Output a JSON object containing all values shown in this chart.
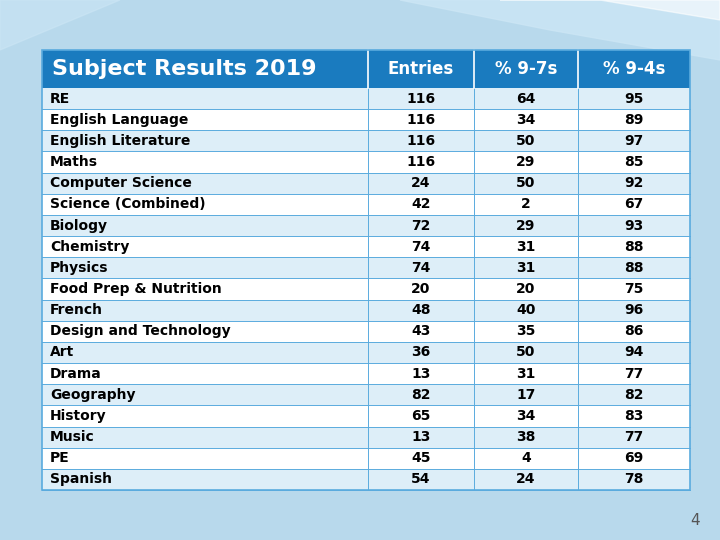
{
  "title": "Subject Results 2019",
  "col_headers": [
    "Entries",
    "% 9-7s",
    "% 9-4s"
  ],
  "rows": [
    [
      "RE",
      116,
      64,
      95
    ],
    [
      "English Language",
      116,
      34,
      89
    ],
    [
      "English Literature",
      116,
      50,
      97
    ],
    [
      "Maths",
      116,
      29,
      85
    ],
    [
      "Computer Science",
      24,
      50,
      92
    ],
    [
      "Science (Combined)",
      42,
      2,
      67
    ],
    [
      "Biology",
      72,
      29,
      93
    ],
    [
      "Chemistry",
      74,
      31,
      88
    ],
    [
      "Physics",
      74,
      31,
      88
    ],
    [
      "Food Prep & Nutrition",
      20,
      20,
      75
    ],
    [
      "French",
      48,
      40,
      96
    ],
    [
      "Design and Technology",
      43,
      35,
      86
    ],
    [
      "Art",
      36,
      50,
      94
    ],
    [
      "Drama",
      13,
      31,
      77
    ],
    [
      "Geography",
      82,
      17,
      82
    ],
    [
      "History",
      65,
      34,
      83
    ],
    [
      "Music",
      13,
      38,
      77
    ],
    [
      "PE",
      45,
      4,
      69
    ],
    [
      "Spanish",
      54,
      24,
      78
    ]
  ],
  "header_bg": "#1a7bbf",
  "header_text_color": "#ffffff",
  "row_bg_even": "#ffffff",
  "row_bg_odd": "#ddeef8",
  "row_text_color": "#000000",
  "cell_border_color": "#5aabde",
  "title_fontsize": 16,
  "header_fontsize": 12,
  "row_fontsize": 10,
  "bg_color": "#b8d9ec",
  "table_bg": "#ffffff",
  "page_number": "4"
}
